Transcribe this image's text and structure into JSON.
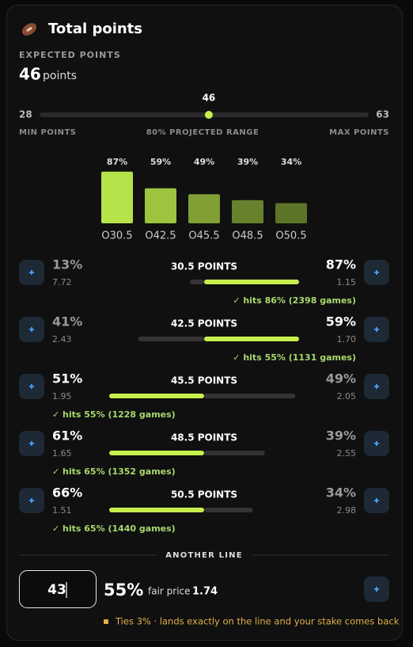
{
  "header": {
    "title": "Total points"
  },
  "expected": {
    "label": "EXPECTED POINTS",
    "value": 46,
    "unit": "points"
  },
  "range": {
    "min": 28,
    "max": 63,
    "marker": 46,
    "min_label": "MIN POINTS",
    "center_label": "80% PROJECTED RANGE",
    "max_label": "MAX POINTS"
  },
  "bars": {
    "categories": [
      "O30.5",
      "O42.5",
      "O45.5",
      "O48.5",
      "O50.5"
    ],
    "values": [
      87,
      59,
      49,
      39,
      34
    ],
    "value_labels": [
      "87%",
      "59%",
      "49%",
      "39%",
      "34%"
    ],
    "colors": [
      "#b6e24a",
      "#9cc43f",
      "#809f34",
      "#67822c",
      "#5d7528"
    ]
  },
  "lines": [
    {
      "title": "30.5 POINTS",
      "under": {
        "value": 13,
        "label": "13%"
      },
      "under_odds": "7.72",
      "over": {
        "value": 87,
        "label": "87%"
      },
      "over_odds": "1.15",
      "hits": "✓ hits 86% (2398 games)"
    },
    {
      "title": "42.5 POINTS",
      "under": {
        "value": 41,
        "label": "41%"
      },
      "under_odds": "2.43",
      "over": {
        "value": 59,
        "label": "59%"
      },
      "over_odds": "1.70",
      "hits": "✓ hits 55% (1131 games)"
    },
    {
      "title": "45.5 POINTS",
      "under": {
        "value": 51,
        "label": "51%"
      },
      "under_odds": "1.95",
      "over": {
        "value": 49,
        "label": "49%"
      },
      "over_odds": "2.05",
      "hits": "✓ hits 55% (1228 games)"
    },
    {
      "title": "48.5 POINTS",
      "under": {
        "value": 61,
        "label": "61%"
      },
      "under_odds": "1.65",
      "over": {
        "value": 39,
        "label": "39%"
      },
      "over_odds": "2.55",
      "hits": "✓ hits 65% (1352 games)"
    },
    {
      "title": "50.5 POINTS",
      "under": {
        "value": 66,
        "label": "66%"
      },
      "under_odds": "1.51",
      "over": {
        "value": 34,
        "label": "34%"
      },
      "over_odds": "2.98",
      "hits": "✓ hits 65% (1440 games)"
    }
  ],
  "another_line": {
    "label": "ANOTHER LINE",
    "input": "43",
    "pct": "55%",
    "fair_price_label": "fair price",
    "fair_price": "1.74",
    "note": "Ties 3% · lands exactly on the line and your stake comes back"
  }
}
